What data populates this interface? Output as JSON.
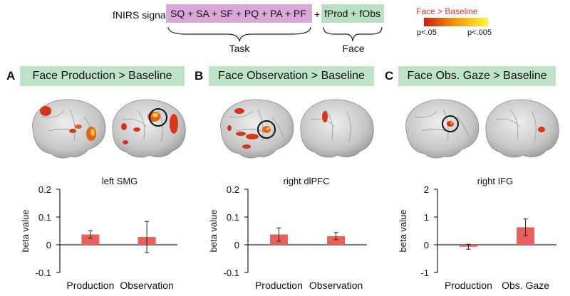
{
  "equation": {
    "lhs": "fNIRS signal ~",
    "task_terms": "SQ + SA + SF + PQ + PA + PF",
    "plus": "+",
    "face_terms": "fProd + fObs",
    "task_label": "Task",
    "face_label": "Face"
  },
  "legend": {
    "title": "Face > Baseline",
    "low": "p<.05",
    "high": "p<.005",
    "colors": [
      "#cc1d12",
      "#f29a10",
      "#fff43a"
    ]
  },
  "panels": [
    {
      "letter": "A",
      "header": "Face Production > Baseline"
    },
    {
      "letter": "B",
      "header": "Face Observation > Baseline"
    },
    {
      "letter": "C",
      "header": "Face Obs. Gaze > Baseline"
    }
  ],
  "chart_data": [
    {
      "type": "bar",
      "title": "left SMG",
      "ylabel": "beta value",
      "categories": [
        "Production",
        "Observation"
      ],
      "values": [
        0.037,
        0.028
      ],
      "errors": [
        0.014,
        0.056
      ],
      "ylim": [
        -0.1,
        0.2
      ],
      "yticks": [
        "-0.1",
        "0",
        "0.1",
        "0.2"
      ],
      "tickvals": [
        -0.1,
        0,
        0.1,
        0.2
      ],
      "bar_color": "#e8605a"
    },
    {
      "type": "bar",
      "title": "right dlPFC",
      "ylabel": "beta value",
      "categories": [
        "Production",
        "Observation"
      ],
      "values": [
        0.037,
        0.031
      ],
      "errors": [
        0.024,
        0.013
      ],
      "ylim": [
        -0.1,
        0.2
      ],
      "yticks": [
        "-0.1",
        "0",
        "0.1",
        "0.2"
      ],
      "tickvals": [
        -0.1,
        0,
        0.1,
        0.2
      ],
      "bar_color": "#e8605a"
    },
    {
      "type": "bar",
      "title": "right IFG",
      "ylabel": "beta value",
      "categories": [
        "Production",
        "Obs. Gaze"
      ],
      "values": [
        -0.07,
        0.63
      ],
      "errors": [
        0.09,
        0.3
      ],
      "ylim": [
        -1,
        2
      ],
      "yticks": [
        "-1",
        "0",
        "1",
        "2"
      ],
      "tickvals": [
        -1,
        0,
        1,
        2
      ],
      "bar_color": "#e8605a"
    }
  ]
}
